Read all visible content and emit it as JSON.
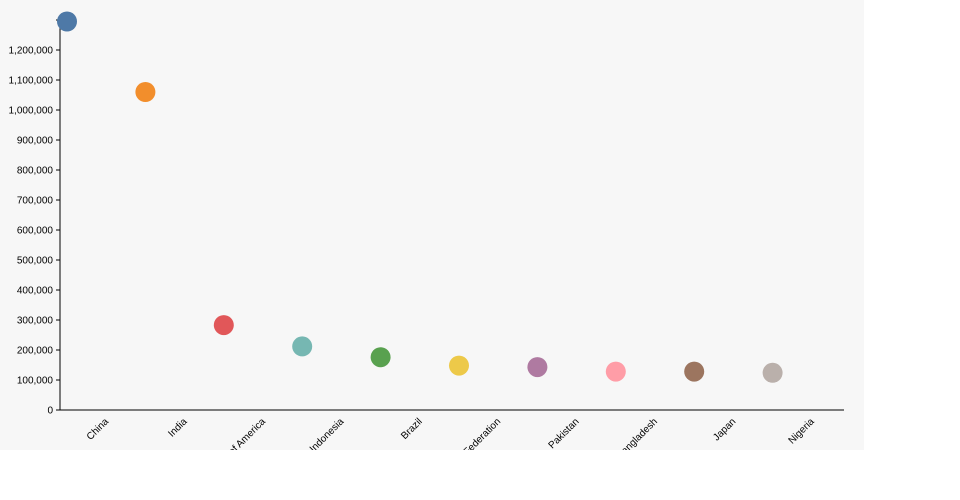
{
  "chart_data": {
    "type": "scatter",
    "title": "",
    "xlabel": "",
    "ylabel": "",
    "ylim": [
      0,
      1300000
    ],
    "yticks": [
      0,
      100000,
      200000,
      300000,
      400000,
      500000,
      600000,
      700000,
      800000,
      900000,
      1000000,
      1100000,
      1200000
    ],
    "ytick_labels": [
      "0",
      "100,000",
      "200,000",
      "300,000",
      "400,000",
      "500,000",
      "600,000",
      "700,000",
      "800,000",
      "900,000",
      "1,000,000",
      "1,100,000",
      "1,200,000"
    ],
    "categories": [
      "China",
      "India",
      "United States of America",
      "Indonesia",
      "Brazil",
      "Russian Federation",
      "Pakistan",
      "Bangladesh",
      "Japan",
      "Nigeria"
    ],
    "values": [
      1295000,
      1060000,
      283000,
      212000,
      176000,
      148000,
      143000,
      128000,
      128000,
      124000
    ],
    "colors": [
      "#4e79a7",
      "#f28e2c",
      "#e15759",
      "#76b7b2",
      "#59a14f",
      "#edc949",
      "#af7aa1",
      "#ff9da7",
      "#9c755f",
      "#bab0ab"
    ],
    "grid": false,
    "legend": "none"
  }
}
